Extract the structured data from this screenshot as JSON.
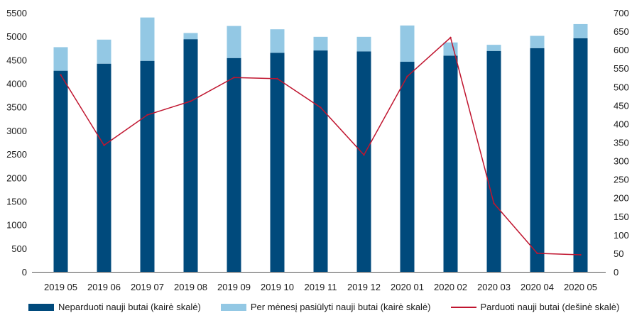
{
  "chart_data": {
    "type": "bar",
    "categories": [
      "2019 05",
      "2019 06",
      "2019 07",
      "2019 08",
      "2019 09",
      "2019 10",
      "2019 11",
      "2019 12",
      "2020 01",
      "2020 02",
      "2020 03",
      "2020 04",
      "2020 05"
    ],
    "series": [
      {
        "name": "Neparduoti nauji butai (kairė skalė)",
        "type": "bar",
        "axis": "left",
        "stack": "a",
        "color": "#004a7c",
        "values": [
          4270,
          4420,
          4480,
          4940,
          4540,
          4650,
          4700,
          4680,
          4460,
          4590,
          4690,
          4750,
          4960
        ]
      },
      {
        "name": "Per mėnesį pasiūlyti nauji butai (kairė skalė)",
        "type": "bar",
        "axis": "left",
        "stack": "a",
        "color": "#93c8e4",
        "values": [
          500,
          510,
          920,
          130,
          680,
          500,
          290,
          310,
          770,
          280,
          130,
          260,
          300
        ]
      },
      {
        "name": "Parduoti nauji butai (dešinė skalė)",
        "type": "line",
        "axis": "right",
        "color": "#c0152f",
        "values": [
          532,
          342,
          424,
          461,
          525,
          522,
          444,
          316,
          528,
          633,
          185,
          50,
          46
        ]
      }
    ],
    "y_left": {
      "min": 0,
      "max": 5500,
      "step": 500
    },
    "y_right": {
      "min": 0,
      "max": 700,
      "step": 50
    },
    "legend_position": "bottom",
    "grid": false
  }
}
